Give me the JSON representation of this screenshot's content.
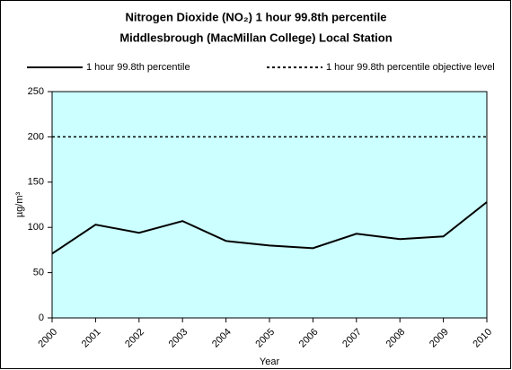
{
  "chart_data": {
    "type": "line",
    "title": "Nitrogen Dioxide (NO₂) 1 hour 99.8th percentile",
    "subtitle": "Middlesbrough (MacMillan College) Local Station",
    "x_label": "Year",
    "y_label": "µg/m³",
    "categories": [
      "2000",
      "2001",
      "2002",
      "2003",
      "2004",
      "2005",
      "2006",
      "2007",
      "2008",
      "2009",
      "2010"
    ],
    "series": [
      {
        "name": "1 hour 99.8th percentile",
        "color": "#000000",
        "style": "solid",
        "values": [
          71,
          103,
          94,
          107,
          85,
          80,
          77,
          93,
          87,
          90,
          128
        ]
      },
      {
        "name": "1 hour 99.8th percentile objective level",
        "color": "#000000",
        "style": "dotted",
        "values": [
          200,
          200,
          200,
          200,
          200,
          200,
          200,
          200,
          200,
          200,
          200
        ]
      }
    ],
    "ylim": [
      0,
      250
    ],
    "yticks": [
      0,
      50,
      100,
      150,
      200,
      250
    ],
    "plot_background": "#ccffff",
    "legend": "top"
  }
}
